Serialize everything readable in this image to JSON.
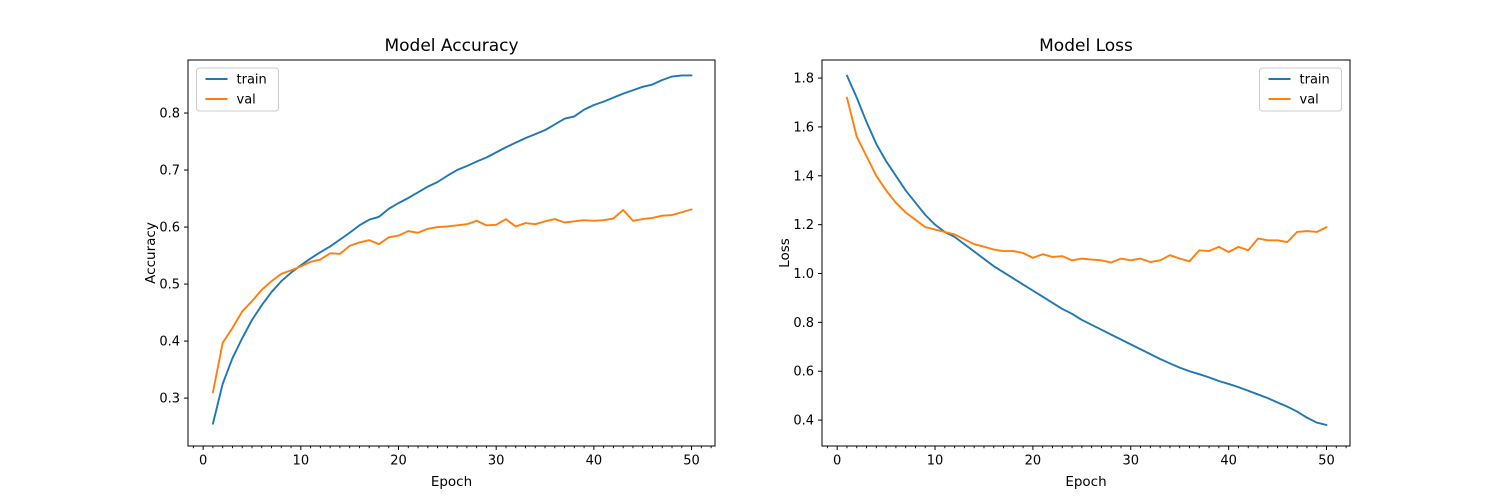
{
  "figure": {
    "background": "#ffffff"
  },
  "colors": {
    "train": "#1f77b4",
    "val": "#ff7f0e",
    "axis": "#000000",
    "text": "#000000",
    "legend_border": "#cccccc",
    "legend_bg": "#ffffff"
  },
  "chart_data": [
    {
      "type": "line",
      "name": "accuracy",
      "title": "Model Accuracy",
      "xlabel": "Epoch",
      "ylabel": "Accuracy",
      "grid": false,
      "legend_position": "upper-left",
      "legend_items": [
        "train",
        "val"
      ],
      "xlim": [
        -1.55,
        52.4
      ],
      "ylim": [
        0.216,
        0.893
      ],
      "xticks": [
        0,
        10,
        20,
        30,
        40,
        50
      ],
      "xtick_labels": [
        "0",
        "10",
        "20",
        "30",
        "40",
        "50"
      ],
      "minor_xtick_step": 1,
      "yticks": [
        0.3,
        0.4,
        0.5,
        0.6,
        0.7,
        0.8
      ],
      "ytick_labels": [
        "0.3",
        "0.4",
        "0.5",
        "0.6",
        "0.7",
        "0.8"
      ],
      "x": [
        1,
        2,
        3,
        4,
        5,
        6,
        7,
        8,
        9,
        10,
        11,
        12,
        13,
        14,
        15,
        16,
        17,
        18,
        19,
        20,
        21,
        22,
        23,
        24,
        25,
        26,
        27,
        28,
        29,
        30,
        31,
        32,
        33,
        34,
        35,
        36,
        37,
        38,
        39,
        40,
        41,
        42,
        43,
        44,
        45,
        46,
        47,
        48,
        49,
        50
      ],
      "series": [
        {
          "name": "train",
          "color_key": "train",
          "values": [
            0.255,
            0.325,
            0.37,
            0.405,
            0.437,
            0.463,
            0.486,
            0.505,
            0.52,
            0.533,
            0.545,
            0.556,
            0.566,
            0.578,
            0.59,
            0.603,
            0.613,
            0.618,
            0.632,
            0.642,
            0.651,
            0.661,
            0.671,
            0.679,
            0.69,
            0.7,
            0.707,
            0.715,
            0.722,
            0.731,
            0.74,
            0.748,
            0.756,
            0.763,
            0.77,
            0.78,
            0.79,
            0.794,
            0.806,
            0.814,
            0.82,
            0.827,
            0.834,
            0.84,
            0.846,
            0.85,
            0.858,
            0.864,
            0.866,
            0.866
          ]
        },
        {
          "name": "val",
          "color_key": "val",
          "values": [
            0.31,
            0.397,
            0.423,
            0.452,
            0.47,
            0.49,
            0.505,
            0.518,
            0.524,
            0.531,
            0.539,
            0.543,
            0.554,
            0.553,
            0.567,
            0.573,
            0.577,
            0.57,
            0.582,
            0.585,
            0.593,
            0.59,
            0.597,
            0.6,
            0.601,
            0.603,
            0.605,
            0.611,
            0.603,
            0.604,
            0.614,
            0.601,
            0.607,
            0.605,
            0.61,
            0.614,
            0.608,
            0.61,
            0.612,
            0.611,
            0.612,
            0.615,
            0.63,
            0.611,
            0.614,
            0.616,
            0.62,
            0.621,
            0.626,
            0.631
          ]
        }
      ]
    },
    {
      "type": "line",
      "name": "loss",
      "title": "Model Loss",
      "xlabel": "Epoch",
      "ylabel": "Loss",
      "grid": false,
      "legend_position": "upper-right",
      "legend_items": [
        "train",
        "val"
      ],
      "xlim": [
        -1.55,
        52.4
      ],
      "ylim": [
        0.294,
        1.874
      ],
      "xticks": [
        0,
        10,
        20,
        30,
        40,
        50
      ],
      "xtick_labels": [
        "0",
        "10",
        "20",
        "30",
        "40",
        "50"
      ],
      "minor_xtick_step": 1,
      "yticks": [
        0.4,
        0.6,
        0.8,
        1.0,
        1.2,
        1.4,
        1.6,
        1.8
      ],
      "ytick_labels": [
        "0.4",
        "0.6",
        "0.8",
        "1.0",
        "1.2",
        "1.4",
        "1.6",
        "1.8"
      ],
      "x": [
        1,
        2,
        3,
        4,
        5,
        6,
        7,
        8,
        9,
        10,
        11,
        12,
        13,
        14,
        15,
        16,
        17,
        18,
        19,
        20,
        21,
        22,
        23,
        24,
        25,
        26,
        27,
        28,
        29,
        30,
        31,
        32,
        33,
        34,
        35,
        36,
        37,
        38,
        39,
        40,
        41,
        42,
        43,
        44,
        45,
        46,
        47,
        48,
        49,
        50
      ],
      "series": [
        {
          "name": "train",
          "color_key": "train",
          "values": [
            1.81,
            1.72,
            1.62,
            1.53,
            1.46,
            1.4,
            1.34,
            1.29,
            1.24,
            1.2,
            1.17,
            1.15,
            1.12,
            1.09,
            1.06,
            1.03,
            1.005,
            0.98,
            0.955,
            0.93,
            0.905,
            0.88,
            0.855,
            0.835,
            0.81,
            0.79,
            0.77,
            0.75,
            0.73,
            0.71,
            0.69,
            0.67,
            0.65,
            0.632,
            0.615,
            0.6,
            0.588,
            0.575,
            0.56,
            0.548,
            0.535,
            0.52,
            0.505,
            0.49,
            0.472,
            0.455,
            0.435,
            0.41,
            0.39,
            0.38
          ]
        },
        {
          "name": "val",
          "color_key": "val",
          "values": [
            1.72,
            1.56,
            1.48,
            1.4,
            1.34,
            1.29,
            1.25,
            1.22,
            1.19,
            1.18,
            1.17,
            1.16,
            1.14,
            1.12,
            1.11,
            1.098,
            1.092,
            1.092,
            1.084,
            1.064,
            1.079,
            1.068,
            1.071,
            1.054,
            1.061,
            1.057,
            1.054,
            1.045,
            1.061,
            1.054,
            1.061,
            1.047,
            1.054,
            1.075,
            1.061,
            1.05,
            1.095,
            1.092,
            1.109,
            1.088,
            1.109,
            1.095,
            1.143,
            1.136,
            1.136,
            1.129,
            1.17,
            1.174,
            1.17,
            1.19
          ]
        }
      ]
    }
  ]
}
